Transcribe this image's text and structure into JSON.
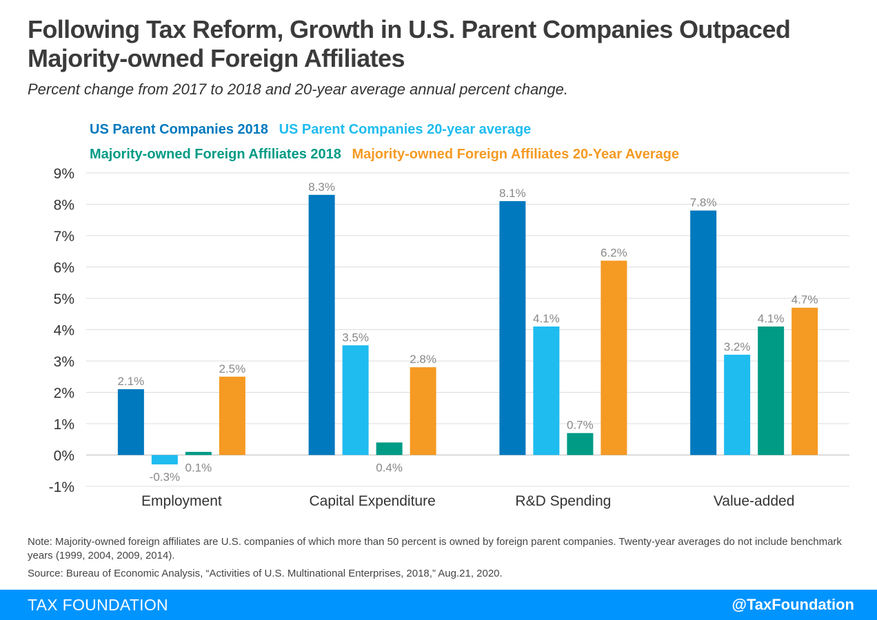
{
  "header": {
    "title": "Following Tax Reform, Growth in U.S. Parent Companies Outpaced Majority-owned Foreign Affiliates",
    "subtitle": "Percent change from 2017 to 2018 and 20-year average annual percent change."
  },
  "legend": [
    {
      "name": "US Parent Companies 2018",
      "color": "#0079be"
    },
    {
      "name": "US Parent Companies 20-year average",
      "color": "#1fbcef"
    },
    {
      "name": "Majority-owned Foreign Affiliates 2018",
      "color": "#009b85"
    },
    {
      "name": "Majority-owned Foreign Affiliates 20-Year Average",
      "color": "#f59a23"
    }
  ],
  "chart_data": {
    "type": "bar",
    "categories": [
      "Employment",
      "Capital Expenditure",
      "R&D Spending",
      "Value-added"
    ],
    "series": [
      {
        "name": "US Parent Companies 2018",
        "color": "#0079be",
        "values": [
          2.1,
          8.3,
          8.1,
          7.8
        ],
        "labels": [
          "2.1%",
          "8.3%",
          "8.1%",
          "7.8%"
        ]
      },
      {
        "name": "US Parent Companies 20-year average",
        "color": "#1fbcef",
        "values": [
          -0.3,
          3.5,
          4.1,
          3.2
        ],
        "labels": [
          "-0.3%",
          "3.5%",
          "4.1%",
          "3.2%"
        ]
      },
      {
        "name": "Majority-owned Foreign Affiliates 2018",
        "color": "#009b85",
        "values": [
          0.1,
          0.4,
          0.7,
          4.1
        ],
        "labels": [
          "0.1%",
          "0.4%",
          "0.7%",
          "4.1%"
        ]
      },
      {
        "name": "Majority-owned Foreign Affiliates 20-Year Average",
        "color": "#f59a23",
        "values": [
          2.5,
          2.8,
          6.2,
          4.7
        ],
        "labels": [
          "2.5%",
          "2.8%",
          "6.2%",
          "4.7%"
        ]
      }
    ],
    "ylim": [
      -1,
      9
    ],
    "yticks": [
      {
        "value": 9,
        "label": "9%"
      },
      {
        "value": 8,
        "label": "8%"
      },
      {
        "value": 7,
        "label": "7%"
      },
      {
        "value": 6,
        "label": "6%"
      },
      {
        "value": 5,
        "label": "5%"
      },
      {
        "value": 4,
        "label": "4%"
      },
      {
        "value": 3,
        "label": "3%"
      },
      {
        "value": 2,
        "label": "2%"
      },
      {
        "value": 1,
        "label": "1%"
      },
      {
        "value": 0,
        "label": "0%"
      },
      {
        "value": -1,
        "label": "-1%"
      }
    ],
    "grid": true,
    "legend_position": "top"
  },
  "notes": {
    "note": "Note: Majority-owned foreign affiliates are U.S. companies of which more than 50 percent is owned by foreign parent companies. Twenty-year averages do not include benchmark years (1999, 2004, 2009, 2014).",
    "source": "Source: Bureau of Economic Analysis, “Activities of U.S. Multinational Enterprises, 2018,” Aug.21, 2020."
  },
  "footer": {
    "brand": "TAX FOUNDATION",
    "handle": "@TaxFoundation"
  }
}
